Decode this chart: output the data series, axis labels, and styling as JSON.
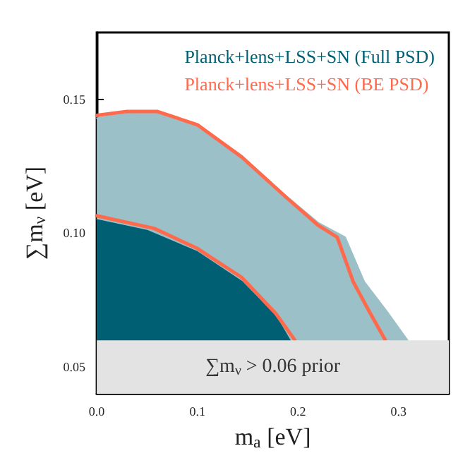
{
  "chart_data": {
    "type": "area",
    "xlabel": "m$_{a}$ [eV]",
    "ylabel": "∑m$_{ν}$ [eV]",
    "xlim": [
      0,
      0.35
    ],
    "ylim": [
      0.04,
      0.175
    ],
    "xticks": [
      {
        "value": 0,
        "label": "0.0"
      },
      0.1,
      0.2,
      0.3
    ],
    "yticks": [
      0.05,
      {
        "value": 0.1,
        "label": "0.10"
      },
      0.15
    ],
    "grid": false,
    "legend": "top right",
    "marker": "none",
    "line_style": "solid",
    "bands": [
      {
        "axis": "y",
        "from": 0.04,
        "to": 0.06,
        "label": "∑m$_{ν}$ > 0.06 prior",
        "color": "#e3e3e3"
      }
    ],
    "series": [
      {
        "color": "#9cc0c7",
        "x": [
          0,
          0.03,
          0.06,
          0.1,
          0.144,
          0.188,
          0.22,
          0.247,
          0.266,
          0.29,
          0.309
        ],
        "values": [
          0.143,
          0.145,
          0.1455,
          0.1405,
          0.129,
          0.114,
          0.104,
          0.0985,
          0.0818,
          0.07,
          0.06
        ]
      },
      {
        "name": "Planck+lens+LSS+SN (Full PSD)",
        "color": "#005f73",
        "x": [
          0,
          0.05,
          0.1,
          0.144,
          0.178,
          0.192
        ],
        "values": [
          0.105,
          0.101,
          0.093,
          0.082,
          0.069,
          0.06
        ]
      },
      {
        "type": "line",
        "name": "Planck+lens+LSS+SN (BE PSD)",
        "color": "#ff6a4d",
        "x": [
          0,
          0.03,
          0.06,
          0.1,
          0.144,
          0.188,
          0.22,
          0.239,
          0.255,
          0.272,
          0.287
        ],
        "values": [
          0.144,
          0.1455,
          0.1455,
          0.1405,
          0.1285,
          0.1135,
          0.103,
          0.0985,
          0.0818,
          0.07,
          0.06
        ]
      },
      {
        "type": "line",
        "color": "#ff6a4d",
        "x": [
          0,
          0.057,
          0.1,
          0.144,
          0.178,
          0.197
        ],
        "values": [
          0.1065,
          0.1018,
          0.0943,
          0.0835,
          0.07,
          0.06
        ]
      }
    ]
  }
}
